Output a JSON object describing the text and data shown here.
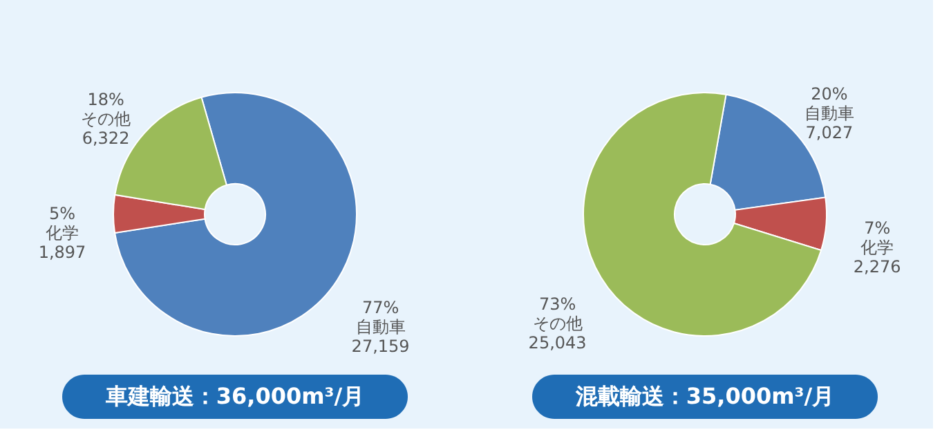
{
  "chart_data": [
    {
      "type": "donut",
      "title": "車建輸送：36,000m³/月",
      "categories": [
        "自動車",
        "化学",
        "その他"
      ],
      "values": [
        77,
        5,
        18
      ],
      "colors": [
        "#4f81bd",
        "#c0504d",
        "#9bbb59"
      ],
      "value_labels": [
        "77%\n27,159",
        "5%\n1,897",
        "18%\n6,322"
      ],
      "legend": false
    },
    {
      "type": "donut",
      "title": "混載輸送：35,000m³/月",
      "categories": [
        "自動車",
        "化学",
        "その他"
      ],
      "values": [
        20,
        7,
        73
      ],
      "colors": [
        "#4f81bd",
        "#c0504d",
        "#9bbb59"
      ],
      "value_labels": [
        "20%\n7,027",
        "7%\n2,276",
        "73%\n25,043"
      ],
      "legend": false
    }
  ]
}
